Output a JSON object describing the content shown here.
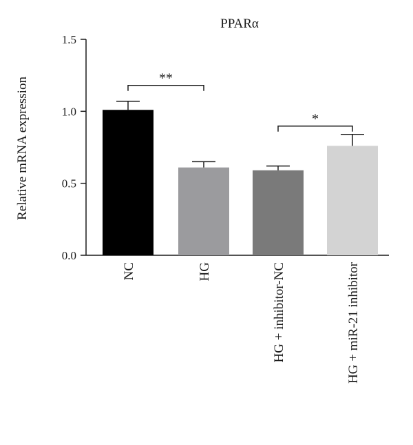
{
  "chart_data": {
    "type": "bar",
    "title": "PPARα",
    "ylabel": "Relative mRNA expression",
    "xlabel": "",
    "ylim": [
      0,
      1.5
    ],
    "yticks": [
      0.0,
      0.5,
      1.0,
      1.5
    ],
    "ytick_labels": [
      "0.0",
      "0.5",
      "1.0",
      "1.5"
    ],
    "grid": false,
    "categories": [
      "NC",
      "HG",
      "HG + inhibitor-NC",
      "HG + miR-21 inhibitor"
    ],
    "values": [
      1.01,
      0.61,
      0.59,
      0.76
    ],
    "errors": [
      0.06,
      0.04,
      0.03,
      0.08
    ],
    "colors": [
      "#000000",
      "#9b9b9e",
      "#7a7a7a",
      "#d3d3d3"
    ],
    "significance": [
      {
        "from": 0,
        "to": 1,
        "label": "**"
      },
      {
        "from": 2,
        "to": 3,
        "label": "*"
      }
    ]
  }
}
